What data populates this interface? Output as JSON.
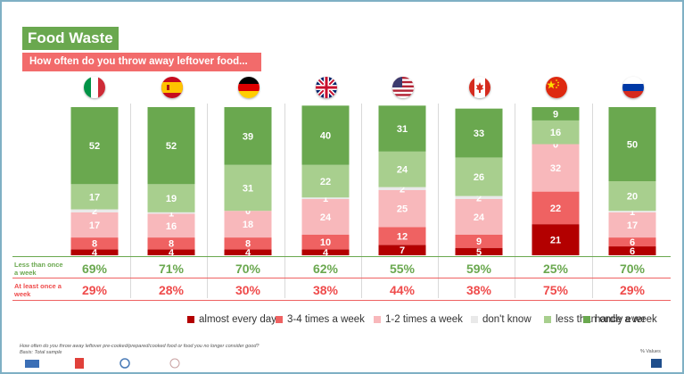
{
  "header": {
    "title": "Food Waste",
    "subtitle": "How often do you throw away leftover food..."
  },
  "countries": [
    {
      "flag": "italy-flag-icon"
    },
    {
      "flag": "spain-flag-icon"
    },
    {
      "flag": "germany-flag-icon"
    },
    {
      "flag": "uk-flag-icon"
    },
    {
      "flag": "usa-flag-icon"
    },
    {
      "flag": "canada-flag-icon"
    },
    {
      "flag": "china-flag-icon"
    },
    {
      "flag": "russia-flag-icon"
    }
  ],
  "chart_data": {
    "type": "bar",
    "stacked": true,
    "ylim": [
      0,
      100
    ],
    "categories": [
      "Italy",
      "Spain",
      "Germany",
      "UK",
      "USA",
      "Canada",
      "China",
      "Russia"
    ],
    "series": [
      {
        "name": "almost every day",
        "color": "#b30000",
        "values": [
          4,
          4,
          4,
          4,
          7,
          5,
          21,
          6
        ]
      },
      {
        "name": "3-4 times a week",
        "color": "#ef6262",
        "values": [
          8,
          8,
          8,
          10,
          12,
          9,
          22,
          6
        ]
      },
      {
        "name": "1-2 times a week",
        "color": "#f8b8bb",
        "values": [
          17,
          16,
          18,
          24,
          25,
          24,
          32,
          17
        ]
      },
      {
        "name": "don't know",
        "color": "#e9e9e9",
        "values": [
          2,
          1,
          0,
          1,
          2,
          2,
          0,
          1
        ]
      },
      {
        "name": "less than once a week",
        "color": "#a8cf8e",
        "values": [
          17,
          19,
          31,
          22,
          24,
          26,
          16,
          20
        ]
      },
      {
        "name": "hardly ever",
        "color": "#6aa84f",
        "values": [
          52,
          52,
          39,
          40,
          31,
          33,
          9,
          50
        ]
      }
    ],
    "summary_rows": [
      {
        "label": "Less than once a week",
        "color": "#6aa84f",
        "values": [
          "69%",
          "71%",
          "70%",
          "62%",
          "55%",
          "59%",
          "25%",
          "70%"
        ]
      },
      {
        "label": "At least once a week",
        "color": "#ef4b4b",
        "values": [
          "29%",
          "28%",
          "30%",
          "38%",
          "44%",
          "38%",
          "75%",
          "29%"
        ]
      }
    ],
    "legend_position": "bottom"
  },
  "footer": {
    "note_line1": "How often do you throw away leftover pre-cooked/prepared/cooked food or food you no longer consider good?",
    "note_line2": "Basis: Total sample",
    "values_label": "% Values"
  }
}
